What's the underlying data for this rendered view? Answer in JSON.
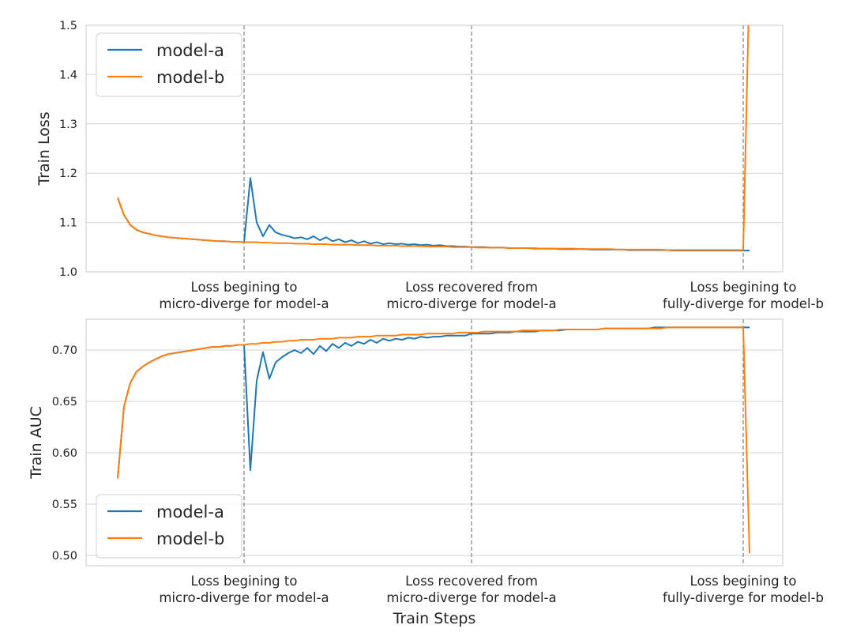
{
  "chart_data": [
    {
      "type": "line",
      "ylabel": "Train Loss",
      "xlabel": "",
      "ylim": [
        1.0,
        1.5
      ],
      "yticks": [
        "1.0",
        "1.1",
        "1.2",
        "1.3",
        "1.4",
        "1.5"
      ],
      "grid": true,
      "legend": "top-left",
      "x": [
        0,
        1,
        2,
        3,
        4,
        5,
        6,
        7,
        8,
        9,
        10,
        11,
        12,
        13,
        14,
        15,
        16,
        17,
        18,
        19,
        20,
        21,
        22,
        23,
        24,
        25,
        26,
        27,
        28,
        29,
        30,
        31,
        32,
        33,
        34,
        35,
        36,
        37,
        38,
        39,
        40,
        41,
        42,
        43,
        44,
        45,
        46,
        47,
        48,
        49,
        50,
        51,
        52,
        53,
        54,
        55,
        56,
        57,
        58,
        59,
        60,
        61,
        62,
        63,
        64,
        65,
        66,
        67,
        68,
        69,
        70,
        71,
        72,
        73,
        74,
        75,
        76,
        77,
        78,
        79,
        80,
        81,
        82,
        83,
        84,
        85,
        86,
        87,
        88,
        89,
        90,
        91,
        92,
        93,
        94,
        95,
        96,
        97,
        98,
        99,
        100
      ],
      "series": [
        {
          "name": "model-a",
          "color": "#1f77b4",
          "values": [
            1.15,
            1.115,
            1.095,
            1.085,
            1.08,
            1.077,
            1.074,
            1.072,
            1.07,
            1.069,
            1.068,
            1.067,
            1.066,
            1.065,
            1.064,
            1.063,
            1.062,
            1.062,
            1.061,
            1.061,
            1.06,
            1.19,
            1.1,
            1.072,
            1.095,
            1.08,
            1.075,
            1.072,
            1.068,
            1.07,
            1.066,
            1.072,
            1.064,
            1.07,
            1.062,
            1.066,
            1.06,
            1.064,
            1.058,
            1.062,
            1.057,
            1.06,
            1.056,
            1.058,
            1.056,
            1.057,
            1.055,
            1.056,
            1.054,
            1.055,
            1.053,
            1.054,
            1.052,
            1.052,
            1.051,
            1.051,
            1.05,
            1.05,
            1.05,
            1.049,
            1.049,
            1.049,
            1.048,
            1.048,
            1.048,
            1.048,
            1.047,
            1.047,
            1.047,
            1.047,
            1.046,
            1.046,
            1.046,
            1.046,
            1.046,
            1.045,
            1.045,
            1.045,
            1.045,
            1.045,
            1.045,
            1.044,
            1.044,
            1.044,
            1.044,
            1.044,
            1.044,
            1.044,
            1.043,
            1.043,
            1.043,
            1.043,
            1.043,
            1.043,
            1.043,
            1.043,
            1.043,
            1.043,
            1.043,
            1.043,
            1.043
          ]
        },
        {
          "name": "model-b",
          "color": "#ff7f0e",
          "values": [
            1.15,
            1.115,
            1.095,
            1.085,
            1.08,
            1.077,
            1.074,
            1.072,
            1.07,
            1.069,
            1.068,
            1.067,
            1.066,
            1.065,
            1.064,
            1.063,
            1.062,
            1.062,
            1.061,
            1.061,
            1.06,
            1.06,
            1.06,
            1.059,
            1.059,
            1.058,
            1.058,
            1.058,
            1.057,
            1.057,
            1.057,
            1.056,
            1.056,
            1.056,
            1.055,
            1.055,
            1.055,
            1.055,
            1.054,
            1.054,
            1.054,
            1.053,
            1.053,
            1.053,
            1.053,
            1.052,
            1.052,
            1.052,
            1.052,
            1.051,
            1.051,
            1.051,
            1.051,
            1.05,
            1.05,
            1.05,
            1.05,
            1.049,
            1.049,
            1.049,
            1.049,
            1.049,
            1.048,
            1.048,
            1.048,
            1.048,
            1.048,
            1.047,
            1.047,
            1.047,
            1.047,
            1.047,
            1.047,
            1.046,
            1.046,
            1.046,
            1.046,
            1.046,
            1.046,
            1.045,
            1.045,
            1.045,
            1.045,
            1.045,
            1.045,
            1.045,
            1.045,
            1.044,
            1.044,
            1.044,
            1.044,
            1.044,
            1.044,
            1.044,
            1.044,
            1.044,
            1.044,
            1.044,
            1.044,
            1.044,
            1.6
          ]
        }
      ],
      "vlines": [
        20,
        56,
        99
      ],
      "annotations": [
        {
          "x": 20,
          "line1": "Loss begining to",
          "line2": "micro-diverge for model-a"
        },
        {
          "x": 56,
          "line1": "Loss recovered from",
          "line2": "micro-diverge for model-a"
        },
        {
          "x": 99,
          "line1": "Loss begining to",
          "line2": "fully-diverge for model-b"
        }
      ]
    },
    {
      "type": "line",
      "ylabel": "Train AUC",
      "xlabel": "Train Steps",
      "ylim": [
        0.49,
        0.73
      ],
      "yticks": [
        "0.50",
        "0.55",
        "0.60",
        "0.65",
        "0.70"
      ],
      "grid": true,
      "legend": "bottom-left",
      "x": [
        0,
        1,
        2,
        3,
        4,
        5,
        6,
        7,
        8,
        9,
        10,
        11,
        12,
        13,
        14,
        15,
        16,
        17,
        18,
        19,
        20,
        21,
        22,
        23,
        24,
        25,
        26,
        27,
        28,
        29,
        30,
        31,
        32,
        33,
        34,
        35,
        36,
        37,
        38,
        39,
        40,
        41,
        42,
        43,
        44,
        45,
        46,
        47,
        48,
        49,
        50,
        51,
        52,
        53,
        54,
        55,
        56,
        57,
        58,
        59,
        60,
        61,
        62,
        63,
        64,
        65,
        66,
        67,
        68,
        69,
        70,
        71,
        72,
        73,
        74,
        75,
        76,
        77,
        78,
        79,
        80,
        81,
        82,
        83,
        84,
        85,
        86,
        87,
        88,
        89,
        90,
        91,
        92,
        93,
        94,
        95,
        96,
        97,
        98,
        99,
        100
      ],
      "series": [
        {
          "name": "model-a",
          "color": "#1f77b4",
          "values": [
            0.575,
            0.645,
            0.668,
            0.679,
            0.684,
            0.688,
            0.691,
            0.694,
            0.696,
            0.697,
            0.698,
            0.699,
            0.7,
            0.701,
            0.702,
            0.703,
            0.703,
            0.704,
            0.704,
            0.705,
            0.705,
            0.583,
            0.67,
            0.698,
            0.672,
            0.688,
            0.693,
            0.697,
            0.7,
            0.697,
            0.702,
            0.696,
            0.704,
            0.699,
            0.706,
            0.702,
            0.707,
            0.704,
            0.708,
            0.706,
            0.71,
            0.707,
            0.711,
            0.709,
            0.711,
            0.71,
            0.712,
            0.711,
            0.713,
            0.712,
            0.713,
            0.713,
            0.714,
            0.714,
            0.714,
            0.714,
            0.716,
            0.716,
            0.716,
            0.716,
            0.717,
            0.717,
            0.717,
            0.718,
            0.718,
            0.718,
            0.718,
            0.719,
            0.719,
            0.719,
            0.719,
            0.72,
            0.72,
            0.72,
            0.72,
            0.72,
            0.72,
            0.721,
            0.721,
            0.721,
            0.721,
            0.721,
            0.721,
            0.721,
            0.721,
            0.722,
            0.722,
            0.722,
            0.722,
            0.722,
            0.722,
            0.722,
            0.722,
            0.722,
            0.722,
            0.722,
            0.722,
            0.722,
            0.722,
            0.722,
            0.722
          ]
        },
        {
          "name": "model-b",
          "color": "#ff7f0e",
          "values": [
            0.575,
            0.645,
            0.668,
            0.679,
            0.684,
            0.688,
            0.691,
            0.694,
            0.696,
            0.697,
            0.698,
            0.699,
            0.7,
            0.701,
            0.702,
            0.703,
            0.703,
            0.704,
            0.704,
            0.705,
            0.705,
            0.706,
            0.706,
            0.707,
            0.707,
            0.708,
            0.708,
            0.709,
            0.709,
            0.71,
            0.71,
            0.71,
            0.711,
            0.711,
            0.711,
            0.712,
            0.712,
            0.712,
            0.713,
            0.713,
            0.713,
            0.714,
            0.714,
            0.714,
            0.714,
            0.715,
            0.715,
            0.715,
            0.715,
            0.716,
            0.716,
            0.716,
            0.716,
            0.716,
            0.717,
            0.717,
            0.717,
            0.717,
            0.718,
            0.718,
            0.718,
            0.718,
            0.718,
            0.718,
            0.719,
            0.719,
            0.719,
            0.719,
            0.719,
            0.719,
            0.72,
            0.72,
            0.72,
            0.72,
            0.72,
            0.72,
            0.72,
            0.721,
            0.721,
            0.721,
            0.721,
            0.721,
            0.721,
            0.721,
            0.721,
            0.721,
            0.721,
            0.722,
            0.722,
            0.722,
            0.722,
            0.722,
            0.722,
            0.722,
            0.722,
            0.722,
            0.722,
            0.722,
            0.722,
            0.722,
            0.502
          ]
        }
      ],
      "vlines": [
        20,
        56,
        99
      ],
      "annotations": [
        {
          "x": 20,
          "line1": "Loss begining to",
          "line2": "micro-diverge for model-a"
        },
        {
          "x": 56,
          "line1": "Loss recovered from",
          "line2": "micro-diverge for model-a"
        },
        {
          "x": 99,
          "line1": "Loss begining to",
          "line2": "fully-diverge for model-b"
        }
      ]
    }
  ]
}
